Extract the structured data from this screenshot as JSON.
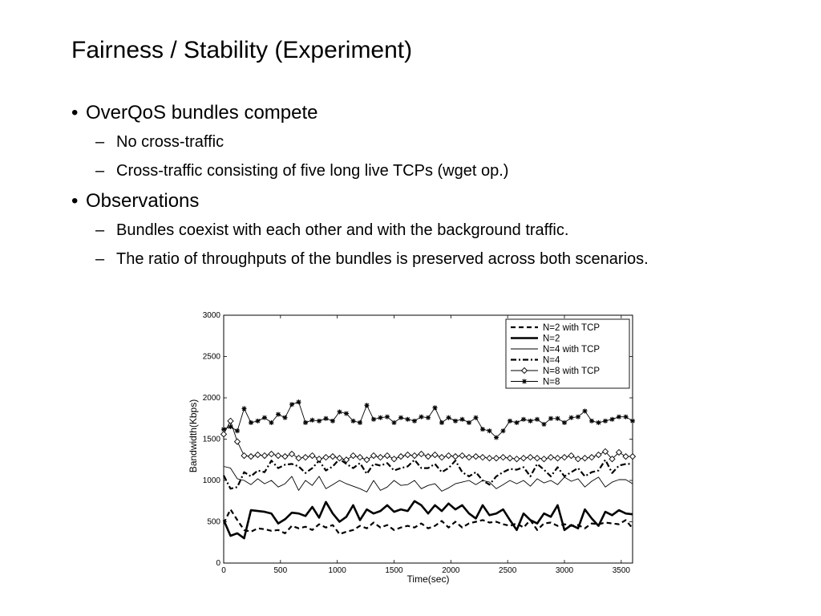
{
  "slide": {
    "title": "Fairness / Stability (Experiment)",
    "bullets": [
      {
        "text": "OverQoS bundles compete",
        "subs": [
          "No cross-traffic",
          "Cross-traffic consisting of five long live TCPs (wget op.)"
        ]
      },
      {
        "text": "Observations",
        "subs": [
          "Bundles coexist with each other and with the background traffic.",
          "The ratio of throughputs of the bundles is preserved across both scenarios."
        ]
      }
    ],
    "bullet_glyph": "•",
    "dash_glyph": "–"
  },
  "chart_data": {
    "type": "line",
    "xlabel": "Time(sec)",
    "ylabel": "Bandwidth(Kbps)",
    "xlim": [
      0,
      3600
    ],
    "ylim": [
      0,
      3000
    ],
    "xticks": [
      0,
      500,
      1000,
      1500,
      2000,
      2500,
      3000,
      3500
    ],
    "yticks": [
      0,
      500,
      1000,
      1500,
      2000,
      2500,
      3000
    ],
    "grid": false,
    "legend_position": "top-right",
    "series": [
      {
        "name": "N=2 with TCP",
        "style": "dashed",
        "marker": "none",
        "x": [
          0,
          60,
          120,
          180,
          240,
          300,
          360,
          420,
          480,
          540,
          600,
          660,
          720,
          780,
          840,
          900,
          960,
          1020,
          1080,
          1140,
          1200,
          1260,
          1320,
          1380,
          1440,
          1500,
          1560,
          1620,
          1680,
          1740,
          1800,
          1860,
          1920,
          1980,
          2040,
          2100,
          2160,
          2220,
          2280,
          2340,
          2400,
          2460,
          2520,
          2580,
          2640,
          2700,
          2760,
          2820,
          2880,
          2940,
          3000,
          3060,
          3120,
          3180,
          3240,
          3300,
          3360,
          3420,
          3480,
          3540,
          3600
        ],
        "y": [
          480,
          650,
          520,
          400,
          380,
          420,
          410,
          390,
          400,
          360,
          450,
          420,
          440,
          400,
          470,
          430,
          460,
          350,
          380,
          400,
          450,
          420,
          490,
          430,
          460,
          400,
          430,
          450,
          430,
          480,
          420,
          450,
          510,
          430,
          500,
          430,
          480,
          500,
          520,
          490,
          500,
          470,
          450,
          480,
          430,
          520,
          400,
          480,
          490,
          450,
          470,
          450,
          460,
          420,
          480,
          470,
          490,
          480,
          470,
          520,
          420
        ]
      },
      {
        "name": "N=2",
        "style": "thick",
        "marker": "none",
        "x": [
          0,
          60,
          120,
          180,
          240,
          300,
          360,
          420,
          480,
          540,
          600,
          660,
          720,
          780,
          840,
          900,
          960,
          1020,
          1080,
          1140,
          1200,
          1260,
          1320,
          1380,
          1440,
          1500,
          1560,
          1620,
          1680,
          1740,
          1800,
          1860,
          1920,
          1980,
          2040,
          2100,
          2160,
          2220,
          2280,
          2340,
          2400,
          2460,
          2520,
          2580,
          2640,
          2700,
          2760,
          2820,
          2880,
          2940,
          3000,
          3060,
          3120,
          3180,
          3240,
          3300,
          3360,
          3420,
          3480,
          3540,
          3600
        ],
        "y": [
          520,
          330,
          360,
          300,
          640,
          630,
          620,
          600,
          480,
          530,
          610,
          600,
          570,
          680,
          550,
          740,
          600,
          500,
          560,
          700,
          520,
          650,
          600,
          630,
          700,
          620,
          650,
          630,
          750,
          700,
          600,
          700,
          630,
          720,
          650,
          700,
          600,
          540,
          700,
          580,
          600,
          650,
          520,
          400,
          600,
          520,
          480,
          600,
          560,
          700,
          400,
          460,
          420,
          650,
          540,
          450,
          620,
          580,
          640,
          600,
          590
        ]
      },
      {
        "name": "N=4 with TCP",
        "style": "thin",
        "marker": "none",
        "x": [
          0,
          60,
          120,
          180,
          240,
          300,
          360,
          420,
          480,
          540,
          600,
          660,
          720,
          780,
          840,
          900,
          960,
          1020,
          1080,
          1140,
          1200,
          1260,
          1320,
          1380,
          1440,
          1500,
          1560,
          1620,
          1680,
          1740,
          1800,
          1860,
          1920,
          1980,
          2040,
          2100,
          2160,
          2220,
          2280,
          2340,
          2400,
          2460,
          2520,
          2580,
          2640,
          2700,
          2760,
          2820,
          2880,
          2940,
          3000,
          3060,
          3120,
          3180,
          3240,
          3300,
          3360,
          3420,
          3480,
          3540,
          3600
        ],
        "y": [
          1170,
          1150,
          1020,
          1000,
          950,
          1020,
          960,
          1000,
          920,
          960,
          1050,
          880,
          1000,
          940,
          1050,
          900,
          950,
          1000,
          960,
          930,
          900,
          860,
          1000,
          880,
          920,
          1000,
          940,
          950,
          1000,
          900,
          940,
          960,
          870,
          910,
          960,
          980,
          1000,
          950,
          1000,
          980,
          900,
          950,
          1000,
          960,
          1000,
          930,
          1020,
          970,
          1000,
          950,
          1040,
          990,
          1020,
          920,
          990,
          1040,
          920,
          980,
          1010,
          1010,
          960
        ]
      },
      {
        "name": "N=4",
        "style": "dashdot",
        "marker": "none",
        "x": [
          0,
          60,
          120,
          180,
          240,
          300,
          360,
          420,
          480,
          540,
          600,
          660,
          720,
          780,
          840,
          900,
          960,
          1020,
          1080,
          1140,
          1200,
          1260,
          1320,
          1380,
          1440,
          1500,
          1560,
          1620,
          1680,
          1740,
          1800,
          1860,
          1920,
          1980,
          2040,
          2100,
          2160,
          2220,
          2280,
          2340,
          2400,
          2460,
          2520,
          2580,
          2640,
          2700,
          2760,
          2820,
          2880,
          2940,
          3000,
          3060,
          3120,
          3180,
          3240,
          3300,
          3360,
          3420,
          3480,
          3540,
          3600
        ],
        "y": [
          1060,
          900,
          920,
          1100,
          1050,
          1120,
          1100,
          1240,
          1150,
          1190,
          1200,
          1170,
          1090,
          1150,
          1240,
          1120,
          1170,
          1260,
          1200,
          1150,
          1210,
          1080,
          1200,
          1180,
          1210,
          1120,
          1150,
          1170,
          1250,
          1150,
          1150,
          1200,
          1100,
          1150,
          1240,
          1100,
          1050,
          1100,
          1000,
          950,
          1050,
          1100,
          1140,
          1130,
          1160,
          1050,
          1200,
          1130,
          1050,
          1160,
          1050,
          1100,
          1150,
          1050,
          1100,
          1120,
          1250,
          1090,
          1180,
          1200,
          1200
        ]
      },
      {
        "name": "N=8 with TCP",
        "style": "thin",
        "marker": "diamond",
        "x": [
          0,
          60,
          120,
          180,
          240,
          300,
          360,
          420,
          480,
          540,
          600,
          660,
          720,
          780,
          840,
          900,
          960,
          1020,
          1080,
          1140,
          1200,
          1260,
          1320,
          1380,
          1440,
          1500,
          1560,
          1620,
          1680,
          1740,
          1800,
          1860,
          1920,
          1980,
          2040,
          2100,
          2160,
          2220,
          2280,
          2340,
          2400,
          2460,
          2520,
          2580,
          2640,
          2700,
          2760,
          2820,
          2880,
          2940,
          3000,
          3060,
          3120,
          3180,
          3240,
          3300,
          3360,
          3420,
          3480,
          3540,
          3600
        ],
        "y": [
          1560,
          1720,
          1470,
          1300,
          1290,
          1310,
          1300,
          1320,
          1300,
          1290,
          1320,
          1270,
          1280,
          1300,
          1260,
          1280,
          1290,
          1270,
          1250,
          1300,
          1280,
          1250,
          1300,
          1280,
          1300,
          1260,
          1290,
          1310,
          1300,
          1320,
          1290,
          1310,
          1280,
          1300,
          1290,
          1300,
          1280,
          1290,
          1280,
          1270,
          1270,
          1280,
          1270,
          1260,
          1270,
          1280,
          1270,
          1260,
          1280,
          1270,
          1280,
          1300,
          1260,
          1270,
          1280,
          1310,
          1350,
          1260,
          1340,
          1290,
          1290
        ]
      },
      {
        "name": "N=8",
        "style": "thin",
        "marker": "star",
        "x": [
          0,
          60,
          120,
          180,
          240,
          300,
          360,
          420,
          480,
          540,
          600,
          660,
          720,
          780,
          840,
          900,
          960,
          1020,
          1080,
          1140,
          1200,
          1260,
          1320,
          1380,
          1440,
          1500,
          1560,
          1620,
          1680,
          1740,
          1800,
          1860,
          1920,
          1980,
          2040,
          2100,
          2160,
          2220,
          2280,
          2340,
          2400,
          2460,
          2520,
          2580,
          2640,
          2700,
          2760,
          2820,
          2880,
          2940,
          3000,
          3060,
          3120,
          3180,
          3240,
          3300,
          3360,
          3420,
          3480,
          3540,
          3600
        ],
        "y": [
          1620,
          1650,
          1600,
          1870,
          1700,
          1720,
          1760,
          1700,
          1800,
          1760,
          1920,
          1950,
          1700,
          1730,
          1720,
          1750,
          1720,
          1830,
          1810,
          1720,
          1700,
          1910,
          1740,
          1760,
          1770,
          1700,
          1760,
          1740,
          1720,
          1770,
          1760,
          1880,
          1700,
          1760,
          1720,
          1740,
          1700,
          1760,
          1620,
          1600,
          1520,
          1600,
          1720,
          1700,
          1740,
          1720,
          1740,
          1680,
          1750,
          1750,
          1700,
          1760,
          1770,
          1840,
          1720,
          1700,
          1720,
          1740,
          1770,
          1770,
          1720
        ]
      }
    ]
  }
}
